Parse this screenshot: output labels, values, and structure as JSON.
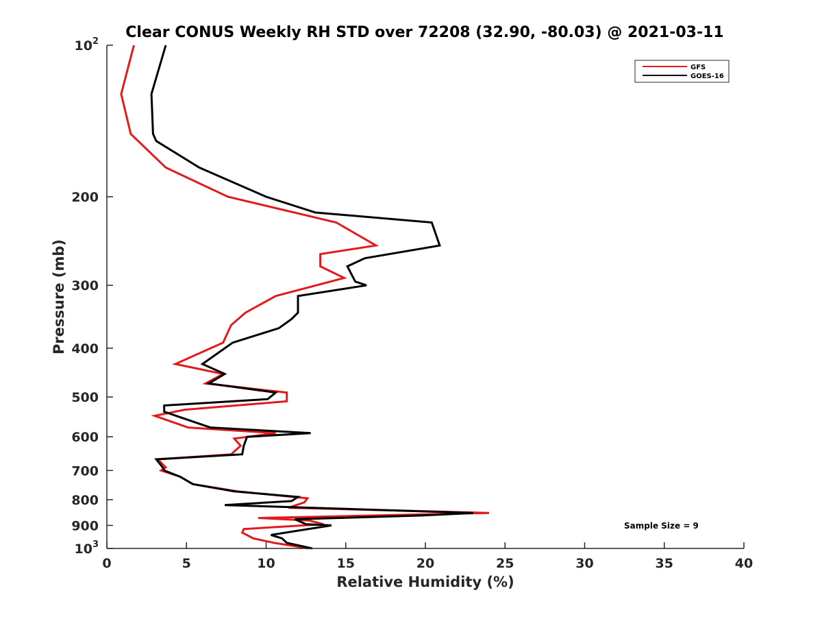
{
  "chart_data": {
    "type": "line",
    "title": "Clear CONUS Weekly RH STD over 72208 (32.90, -80.03) @ 2021-03-11",
    "xlabel": "Relative Humidity (%)",
    "ylabel": "Pressure (mb)",
    "xlim": [
      0,
      40
    ],
    "ylim": [
      100,
      1000
    ],
    "y_scale": "log",
    "y_reversed": true,
    "grid": false,
    "legend_position": "top-right",
    "x_ticks": [
      {
        "value": 0,
        "label": "0"
      },
      {
        "value": 5,
        "label": "5"
      },
      {
        "value": 10,
        "label": "10"
      },
      {
        "value": 15,
        "label": "15"
      },
      {
        "value": 20,
        "label": "20"
      },
      {
        "value": 25,
        "label": "25"
      },
      {
        "value": 30,
        "label": "30"
      },
      {
        "value": 35,
        "label": "35"
      },
      {
        "value": 40,
        "label": "40"
      }
    ],
    "y_ticks": [
      {
        "value": 100,
        "base": "10",
        "exp": "2"
      },
      {
        "value": 200,
        "base": "200",
        "exp": ""
      },
      {
        "value": 300,
        "base": "300",
        "exp": ""
      },
      {
        "value": 400,
        "base": "400",
        "exp": ""
      },
      {
        "value": 500,
        "base": "500",
        "exp": ""
      },
      {
        "value": 600,
        "base": "600",
        "exp": ""
      },
      {
        "value": 700,
        "base": "700",
        "exp": ""
      },
      {
        "value": 800,
        "base": "800",
        "exp": ""
      },
      {
        "value": 900,
        "base": "900",
        "exp": ""
      },
      {
        "value": 1000,
        "base": "10",
        "exp": "3"
      }
    ],
    "series": [
      {
        "name": "GFS",
        "color": "#e31a1c",
        "points": [
          [
            1.7,
            100
          ],
          [
            0.9,
            125
          ],
          [
            1.5,
            150
          ],
          [
            3.7,
            175
          ],
          [
            6.1,
            190
          ],
          [
            7.6,
            200
          ],
          [
            14.4,
            225
          ],
          [
            16.9,
            250
          ],
          [
            13.4,
            260
          ],
          [
            13.4,
            275
          ],
          [
            14.9,
            290
          ],
          [
            10.6,
            315
          ],
          [
            8.7,
            340
          ],
          [
            7.8,
            360
          ],
          [
            7.3,
            390
          ],
          [
            4.3,
            430
          ],
          [
            7.3,
            450
          ],
          [
            6.2,
            470
          ],
          [
            11.3,
            490
          ],
          [
            11.3,
            510
          ],
          [
            4.9,
            530
          ],
          [
            3.0,
            545
          ],
          [
            5.1,
            575
          ],
          [
            10.6,
            590
          ],
          [
            8.0,
            605
          ],
          [
            8.4,
            625
          ],
          [
            7.8,
            650
          ],
          [
            3.2,
            665
          ],
          [
            3.7,
            690
          ],
          [
            3.4,
            700
          ],
          [
            4.6,
            720
          ],
          [
            5.4,
            745
          ],
          [
            8.2,
            770
          ],
          [
            12.6,
            795
          ],
          [
            12.4,
            810
          ],
          [
            11.4,
            830
          ],
          [
            24.0,
            850
          ],
          [
            9.5,
            870
          ],
          [
            12.7,
            880
          ],
          [
            13.6,
            895
          ],
          [
            8.6,
            915
          ],
          [
            8.5,
            930
          ],
          [
            9.2,
            955
          ],
          [
            10.5,
            975
          ],
          [
            12.7,
            1000
          ]
        ]
      },
      {
        "name": "GOES-16",
        "color": "#000000",
        "points": [
          [
            3.7,
            100
          ],
          [
            2.8,
            125
          ],
          [
            2.9,
            150
          ],
          [
            3.1,
            155
          ],
          [
            5.8,
            175
          ],
          [
            10.0,
            200
          ],
          [
            13.1,
            215
          ],
          [
            20.4,
            225
          ],
          [
            20.9,
            250
          ],
          [
            16.2,
            265
          ],
          [
            15.1,
            275
          ],
          [
            15.6,
            295
          ],
          [
            16.3,
            300
          ],
          [
            12.0,
            315
          ],
          [
            12.0,
            340
          ],
          [
            11.6,
            350
          ],
          [
            10.8,
            365
          ],
          [
            7.9,
            390
          ],
          [
            6.0,
            430
          ],
          [
            7.4,
            450
          ],
          [
            6.4,
            470
          ],
          [
            10.6,
            490
          ],
          [
            10.1,
            505
          ],
          [
            3.6,
            520
          ],
          [
            3.6,
            535
          ],
          [
            6.5,
            575
          ],
          [
            12.8,
            590
          ],
          [
            8.8,
            600
          ],
          [
            8.6,
            625
          ],
          [
            8.5,
            650
          ],
          [
            3.1,
            665
          ],
          [
            3.5,
            690
          ],
          [
            3.6,
            700
          ],
          [
            4.6,
            720
          ],
          [
            5.4,
            745
          ],
          [
            8.0,
            770
          ],
          [
            12.0,
            790
          ],
          [
            11.6,
            805
          ],
          [
            7.4,
            820
          ],
          [
            23.0,
            850
          ],
          [
            19.8,
            860
          ],
          [
            11.8,
            875
          ],
          [
            12.5,
            895
          ],
          [
            14.1,
            900
          ],
          [
            10.3,
            940
          ],
          [
            11.0,
            955
          ],
          [
            11.3,
            975
          ],
          [
            12.9,
            1000
          ]
        ]
      }
    ],
    "annotations": [
      {
        "text": "Sample Size = 9"
      }
    ]
  }
}
